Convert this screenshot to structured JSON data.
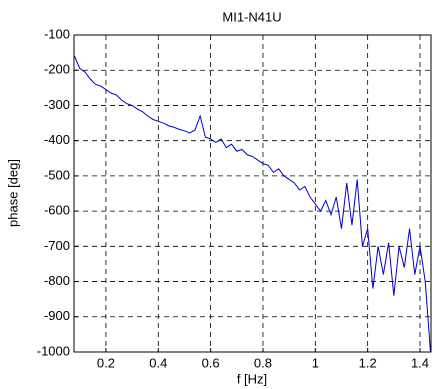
{
  "chart_data": {
    "type": "line",
    "title": "MI1-N41U",
    "x_label": "f [Hz]",
    "y_label": "phase [deg]",
    "x": [
      0.08,
      0.1,
      0.12,
      0.14,
      0.16,
      0.18,
      0.2,
      0.22,
      0.24,
      0.26,
      0.28,
      0.3,
      0.32,
      0.34,
      0.36,
      0.38,
      0.4,
      0.42,
      0.44,
      0.46,
      0.48,
      0.5,
      0.52,
      0.54,
      0.56,
      0.58,
      0.6,
      0.62,
      0.64,
      0.66,
      0.68,
      0.7,
      0.72,
      0.74,
      0.76,
      0.78,
      0.8,
      0.82,
      0.84,
      0.86,
      0.88,
      0.9,
      0.92,
      0.94,
      0.96,
      0.98,
      1.0,
      1.02,
      1.04,
      1.06,
      1.08,
      1.1,
      1.12,
      1.14,
      1.16,
      1.18,
      1.2,
      1.22,
      1.24,
      1.26,
      1.28,
      1.3,
      1.32,
      1.34,
      1.36,
      1.38,
      1.4,
      1.42,
      1.44
    ],
    "series": [
      {
        "color": "#0000cc",
        "values": [
          -160,
          -195,
          -205,
          -225,
          -240,
          -245,
          -255,
          -265,
          -270,
          -285,
          -295,
          -300,
          -310,
          -318,
          -330,
          -340,
          -345,
          -350,
          -358,
          -362,
          -368,
          -372,
          -378,
          -370,
          -330,
          -390,
          -395,
          -405,
          -395,
          -420,
          -410,
          -430,
          -425,
          -440,
          -445,
          -455,
          -465,
          -470,
          -490,
          -480,
          -500,
          -510,
          -520,
          -540,
          -530,
          -560,
          -580,
          -600,
          -570,
          -610,
          -560,
          -650,
          -520,
          -640,
          -510,
          -700,
          -650,
          -820,
          -700,
          -780,
          -690,
          -840,
          -700,
          -760,
          -650,
          -780,
          -700,
          -800,
          -1000
        ]
      }
    ],
    "xlim": [
      0.078,
      1.442
    ],
    "ylim": [
      -1000,
      -100
    ],
    "xticks": [
      0.2,
      0.4,
      0.6,
      0.8,
      1,
      1.2,
      1.4
    ],
    "yticks": [
      -100,
      -200,
      -300,
      -400,
      -500,
      -600,
      -700,
      -800,
      -900,
      -1000
    ],
    "grid": true
  }
}
